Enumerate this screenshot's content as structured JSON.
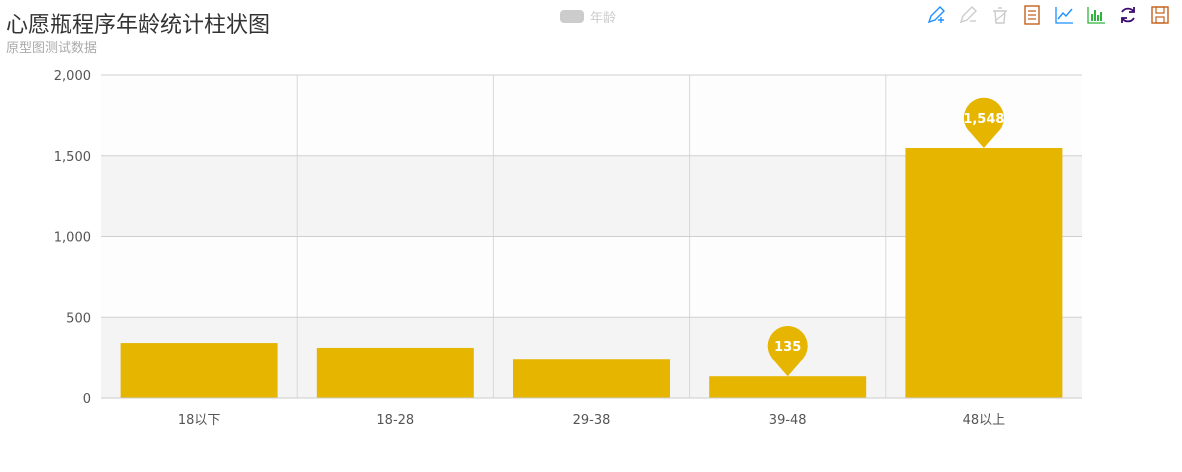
{
  "title": "心愿瓶程序年龄统计柱状图",
  "subtitle": "原型图测试数据",
  "legend": {
    "label": "年龄",
    "swatch_color": "#cccccc",
    "text_color": "#cccccc"
  },
  "toolbox": {
    "icons": [
      "zoom-icon",
      "zoom-reset-icon",
      "clear-icon",
      "data-view-icon",
      "line-chart-icon",
      "bar-chart-icon",
      "restore-icon",
      "save-image-icon"
    ],
    "colors": [
      "#1e90ff",
      "#cccccc",
      "#cccccc",
      "#c4601d",
      "#1e90ff",
      "#2fb53f",
      "#3b0a6e",
      "#c4601d"
    ]
  },
  "chart_data": {
    "type": "bar",
    "title": "心愿瓶程序年龄统计柱状图",
    "subtitle": "原型图测试数据",
    "categories": [
      "18以下",
      "18-28",
      "29-38",
      "39-48",
      "48以上"
    ],
    "series": [
      {
        "name": "年龄",
        "values": [
          340,
          310,
          240,
          135,
          1548
        ],
        "color": "#e5b500"
      }
    ],
    "ylim": [
      0,
      2000
    ],
    "yticks": [
      0,
      500,
      1000,
      1500,
      2000
    ],
    "ytick_labels": [
      "0",
      "500",
      "1,000",
      "1,500",
      "2,000"
    ],
    "mark_points": [
      {
        "category": "39-48",
        "label": "135",
        "kind": "min"
      },
      {
        "category": "48以上",
        "label": "1,548",
        "kind": "max"
      }
    ],
    "grid": true,
    "legend_position": "top-center"
  }
}
